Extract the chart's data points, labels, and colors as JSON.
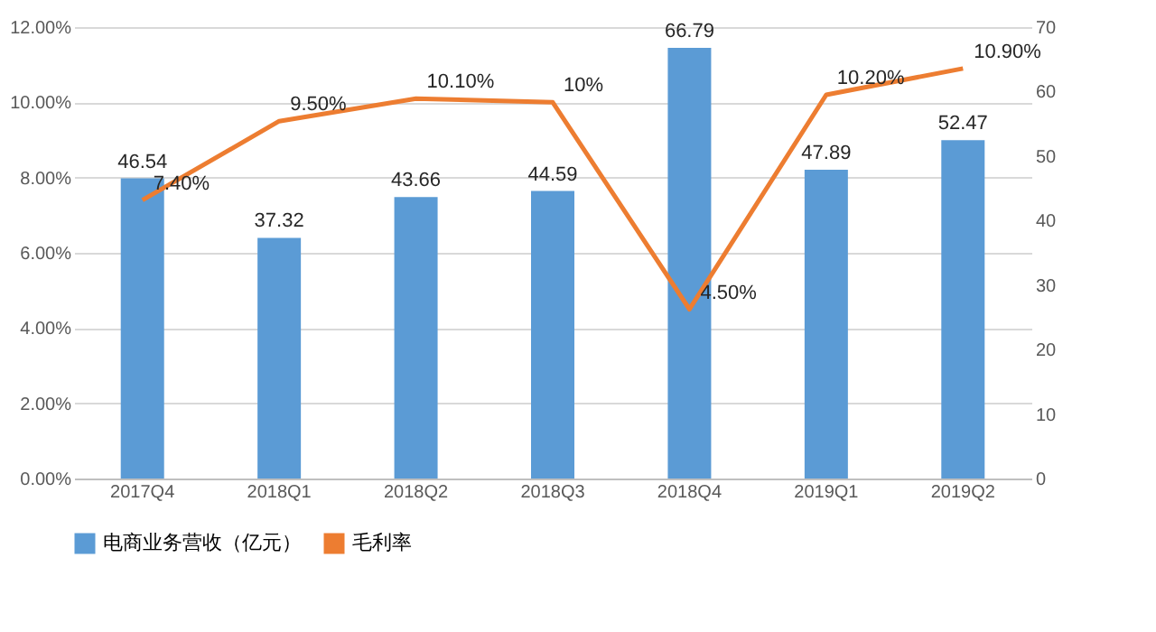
{
  "chart_data": {
    "type": "bar",
    "categories": [
      "2017Q4",
      "2018Q1",
      "2018Q2",
      "2018Q3",
      "2018Q4",
      "2019Q1",
      "2019Q2"
    ],
    "series": [
      {
        "name": "电商业务营收（亿元）",
        "axis": "y2",
        "color": "#5b9bd5",
        "values": [
          46.54,
          37.32,
          43.66,
          44.59,
          66.79,
          47.89,
          52.47
        ],
        "value_labels": [
          "46.54",
          "37.32",
          "43.66",
          "44.59",
          "66.79",
          "47.89",
          "52.47"
        ]
      },
      {
        "name": "毛利率",
        "type": "line",
        "axis": "y",
        "color": "#ed7d31",
        "values": [
          7.4,
          9.5,
          10.1,
          10,
          4.5,
          10.2,
          10.9
        ],
        "value_labels": [
          "7.40%",
          "9.50%",
          "10.10%",
          "10%",
          "4.50%",
          "10.20%",
          "10.90%"
        ]
      }
    ],
    "ylim": [
      0,
      12
    ],
    "yticks": [
      {
        "value": 0,
        "label": "0.00%"
      },
      {
        "value": 2,
        "label": "2.00%"
      },
      {
        "value": 4,
        "label": "4.00%"
      },
      {
        "value": 6,
        "label": "6.00%"
      },
      {
        "value": 8,
        "label": "8.00%"
      },
      {
        "value": 10,
        "label": "10.00%"
      },
      {
        "value": 12,
        "label": "12.00%"
      }
    ],
    "y2lim": [
      0,
      70
    ],
    "y2ticks": [
      0,
      10,
      20,
      30,
      40,
      50,
      60,
      70
    ],
    "grid": "y",
    "legend": "bottom",
    "marker": "none",
    "line_style": "solid"
  }
}
